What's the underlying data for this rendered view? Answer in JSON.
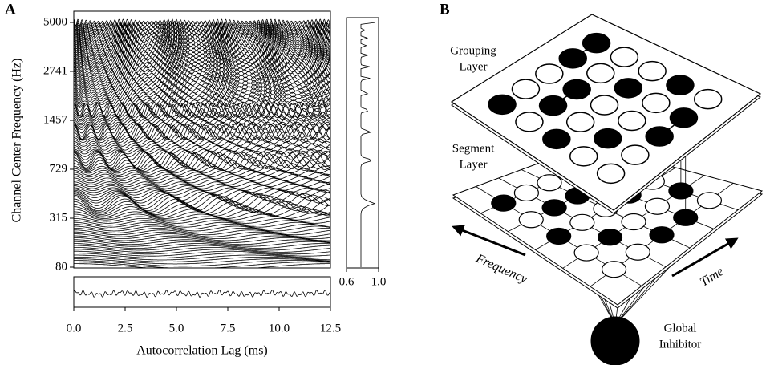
{
  "chart_data": {
    "type": "correlogram",
    "panel_label": "A",
    "y_label": "Channel Center Frequency (Hz)",
    "x_label": "Autocorrelation Lag (ms)",
    "xlim": [
      0,
      12.5
    ],
    "xticks": [
      {
        "value": 0,
        "label": "0.0"
      },
      {
        "value": 2.5,
        "label": "2.5"
      },
      {
        "value": 5,
        "label": "5.0"
      },
      {
        "value": 7.5,
        "label": "7.5"
      },
      {
        "value": 10,
        "label": "10.0"
      },
      {
        "value": 12.5,
        "label": "12.5"
      }
    ],
    "ylim": [
      80,
      5000
    ],
    "yticks": [
      80,
      315,
      729,
      1457,
      2741,
      5000
    ],
    "yscale": "erb",
    "summary_xlim": [
      0.6,
      1
    ],
    "summary_xticks": [
      0.6,
      {
        "value": 1,
        "label": "1.0"
      }
    ]
  },
  "diagram": {
    "panel_label": "B",
    "grouping_layer": [
      "Grouping",
      "Layer"
    ],
    "segment_layer": [
      "Segment",
      "Layer"
    ],
    "frequency_arrow": "Frequency",
    "time_arrow": "Time",
    "global_inhibitor": [
      "Global",
      "Inhibitor"
    ]
  }
}
